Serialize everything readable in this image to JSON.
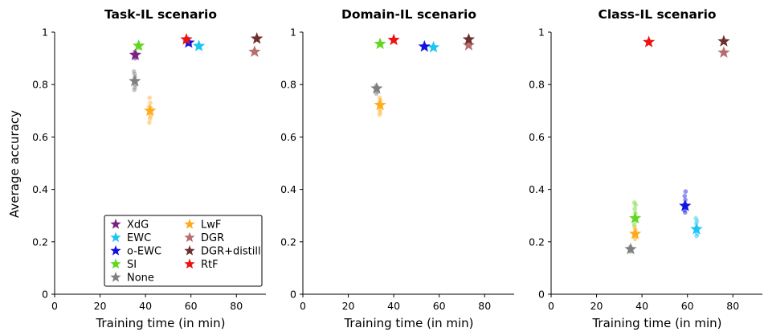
{
  "figure": {
    "ylabel": "Average accuracy",
    "legend": {
      "placement": "lower-left of first panel",
      "columns": 2,
      "entries": [
        {
          "name": "XdG",
          "color": "#7b2283"
        },
        {
          "name": "EWC",
          "color": "#1fc5f2"
        },
        {
          "name": "o-EWC",
          "color": "#1212e0"
        },
        {
          "name": "SI",
          "color": "#5fd81e"
        },
        {
          "name": "None",
          "color": "#7f7f7f"
        },
        {
          "name": "LwF",
          "color": "#ffab1d"
        },
        {
          "name": "DGR",
          "color": "#b86e6e"
        },
        {
          "name": "DGR+distill",
          "color": "#6e2f2f"
        },
        {
          "name": "RtF",
          "color": "#ee1111"
        }
      ]
    }
  },
  "chart_data": [
    {
      "type": "scatter",
      "title": "Task-IL scenario",
      "xlabel": "Training time (in min)",
      "ylabel": "Average accuracy",
      "xlim": [
        0,
        93
      ],
      "ylim": [
        0,
        1
      ],
      "xticks": [
        "0",
        "20",
        "40",
        "60",
        "80"
      ],
      "yticks": [
        "0",
        "0.2",
        "0.4",
        "0.6",
        "0.8",
        "1"
      ],
      "series": [
        {
          "name": "XdG",
          "mean": [
            35.5,
            0.913
          ],
          "runs": [
            [
              35.3,
              0.925
            ],
            [
              35.6,
              0.918
            ],
            [
              35.4,
              0.91
            ],
            [
              35.7,
              0.905
            ],
            [
              35.5,
              0.9
            ]
          ]
        },
        {
          "name": "EWC",
          "mean": [
            63.5,
            0.947
          ],
          "runs": [
            [
              63.3,
              0.95
            ],
            [
              63.6,
              0.946
            ],
            [
              63.8,
              0.942
            ]
          ]
        },
        {
          "name": "o-EWC",
          "mean": [
            59.0,
            0.96
          ],
          "runs": [
            [
              58.8,
              0.962
            ],
            [
              59.2,
              0.957
            ],
            [
              59.4,
              0.954
            ]
          ]
        },
        {
          "name": "SI",
          "mean": [
            37.0,
            0.948
          ],
          "runs": [
            [
              36.6,
              0.945
            ],
            [
              37.2,
              0.94
            ],
            [
              36.8,
              0.952
            ],
            [
              37.3,
              0.947
            ]
          ]
        },
        {
          "name": "None",
          "mean": [
            35.3,
            0.813
          ],
          "runs": [
            [
              34.9,
              0.85
            ],
            [
              35.2,
              0.84
            ],
            [
              35.4,
              0.83
            ],
            [
              35.0,
              0.82
            ],
            [
              35.6,
              0.8
            ],
            [
              35.3,
              0.79
            ],
            [
              35.1,
              0.78
            ],
            [
              35.5,
              0.81
            ]
          ]
        },
        {
          "name": "LwF",
          "mean": [
            42.0,
            0.7
          ],
          "runs": [
            [
              41.8,
              0.75
            ],
            [
              42.1,
              0.73
            ],
            [
              41.6,
              0.715
            ],
            [
              42.3,
              0.71
            ],
            [
              41.9,
              0.69
            ],
            [
              42.2,
              0.68
            ],
            [
              42.0,
              0.67
            ],
            [
              41.7,
              0.655
            ]
          ]
        },
        {
          "name": "DGR",
          "mean": [
            88.0,
            0.925
          ],
          "runs": [
            [
              87.8,
              0.928
            ],
            [
              88.2,
              0.922
            ]
          ]
        },
        {
          "name": "DGR+distill",
          "mean": [
            89.0,
            0.975
          ],
          "runs": [
            [
              88.8,
              0.977
            ],
            [
              89.2,
              0.973
            ]
          ]
        },
        {
          "name": "RtF",
          "mean": [
            58.0,
            0.972
          ],
          "runs": [
            [
              57.8,
              0.975
            ],
            [
              58.2,
              0.969
            ]
          ]
        }
      ]
    },
    {
      "type": "scatter",
      "title": "Domain-IL scenario",
      "xlabel": "Training time (in min)",
      "ylabel": "",
      "xlim": [
        0,
        93
      ],
      "ylim": [
        0,
        1
      ],
      "xticks": [
        "0",
        "20",
        "40",
        "60",
        "80"
      ],
      "yticks": [
        "0",
        "0.2",
        "0.4",
        "0.6",
        "0.8",
        "1"
      ],
      "series": [
        {
          "name": "EWC",
          "mean": [
            57.5,
            0.942
          ],
          "runs": [
            [
              57.3,
              0.945
            ],
            [
              57.7,
              0.94
            ]
          ]
        },
        {
          "name": "o-EWC",
          "mean": [
            53.5,
            0.945
          ],
          "runs": [
            [
              53.3,
              0.948
            ],
            [
              53.7,
              0.943
            ]
          ]
        },
        {
          "name": "SI",
          "mean": [
            34.0,
            0.955
          ],
          "runs": [
            [
              33.8,
              0.957
            ],
            [
              34.2,
              0.952
            ]
          ]
        },
        {
          "name": "None",
          "mean": [
            32.5,
            0.785
          ],
          "runs": [
            [
              32.2,
              0.795
            ],
            [
              32.6,
              0.79
            ],
            [
              32.4,
              0.78
            ],
            [
              32.8,
              0.772
            ],
            [
              32.3,
              0.765
            ]
          ]
        },
        {
          "name": "LwF",
          "mean": [
            34.0,
            0.722
          ],
          "runs": [
            [
              33.8,
              0.75
            ],
            [
              34.1,
              0.74
            ],
            [
              33.7,
              0.73
            ],
            [
              34.2,
              0.715
            ],
            [
              33.9,
              0.705
            ],
            [
              34.0,
              0.695
            ],
            [
              33.8,
              0.685
            ]
          ]
        },
        {
          "name": "DGR",
          "mean": [
            73.0,
            0.95
          ],
          "runs": [
            [
              72.8,
              0.953
            ],
            [
              73.2,
              0.947
            ]
          ]
        },
        {
          "name": "DGR+distill",
          "mean": [
            73.0,
            0.972
          ],
          "runs": [
            [
              72.8,
              0.975
            ],
            [
              73.2,
              0.969
            ]
          ]
        },
        {
          "name": "RtF",
          "mean": [
            40.0,
            0.97
          ],
          "runs": [
            [
              39.8,
              0.972
            ],
            [
              40.2,
              0.968
            ]
          ]
        }
      ]
    },
    {
      "type": "scatter",
      "title": "Class-IL scenario",
      "xlabel": "Training time (in min)",
      "ylabel": "",
      "xlim": [
        0,
        93
      ],
      "ylim": [
        0,
        1
      ],
      "xticks": [
        "0",
        "20",
        "40",
        "60",
        "80"
      ],
      "yticks": [
        "0",
        "0.2",
        "0.4",
        "0.6",
        "0.8",
        "1"
      ],
      "series": [
        {
          "name": "EWC",
          "mean": [
            64.0,
            0.248
          ],
          "runs": [
            [
              63.7,
              0.29
            ],
            [
              64.2,
              0.28
            ],
            [
              63.9,
              0.27
            ],
            [
              64.1,
              0.255
            ],
            [
              63.8,
              0.24
            ],
            [
              64.3,
              0.23
            ],
            [
              64.0,
              0.222
            ]
          ]
        },
        {
          "name": "o-EWC",
          "mean": [
            59.0,
            0.337
          ],
          "runs": [
            [
              59.2,
              0.392
            ],
            [
              58.8,
              0.375
            ],
            [
              59.1,
              0.36
            ],
            [
              58.9,
              0.345
            ],
            [
              59.3,
              0.33
            ],
            [
              58.7,
              0.32
            ],
            [
              59.0,
              0.312
            ]
          ]
        },
        {
          "name": "SI",
          "mean": [
            37.0,
            0.29
          ],
          "runs": [
            [
              36.7,
              0.35
            ],
            [
              37.2,
              0.34
            ],
            [
              36.8,
              0.325
            ],
            [
              37.1,
              0.31
            ],
            [
              36.9,
              0.295
            ],
            [
              37.3,
              0.28
            ],
            [
              36.6,
              0.265
            ]
          ]
        },
        {
          "name": "None",
          "mean": [
            35.0,
            0.172
          ],
          "runs": [
            [
              34.8,
              0.18
            ],
            [
              35.2,
              0.175
            ],
            [
              35.0,
              0.168
            ],
            [
              34.9,
              0.163
            ]
          ]
        },
        {
          "name": "LwF",
          "mean": [
            37.0,
            0.23
          ],
          "runs": [
            [
              36.8,
              0.255
            ],
            [
              37.1,
              0.245
            ],
            [
              36.9,
              0.235
            ],
            [
              37.2,
              0.22
            ],
            [
              37.0,
              0.21
            ]
          ]
        },
        {
          "name": "DGR",
          "mean": [
            76.0,
            0.922
          ],
          "runs": [
            [
              75.8,
              0.925
            ],
            [
              76.2,
              0.919
            ]
          ]
        },
        {
          "name": "DGR+distill",
          "mean": [
            76.0,
            0.965
          ],
          "runs": [
            [
              75.8,
              0.968
            ],
            [
              76.2,
              0.962
            ]
          ]
        },
        {
          "name": "RtF",
          "mean": [
            43.0,
            0.962
          ],
          "runs": [
            [
              42.8,
              0.964
            ],
            [
              43.2,
              0.96
            ]
          ]
        }
      ]
    }
  ]
}
